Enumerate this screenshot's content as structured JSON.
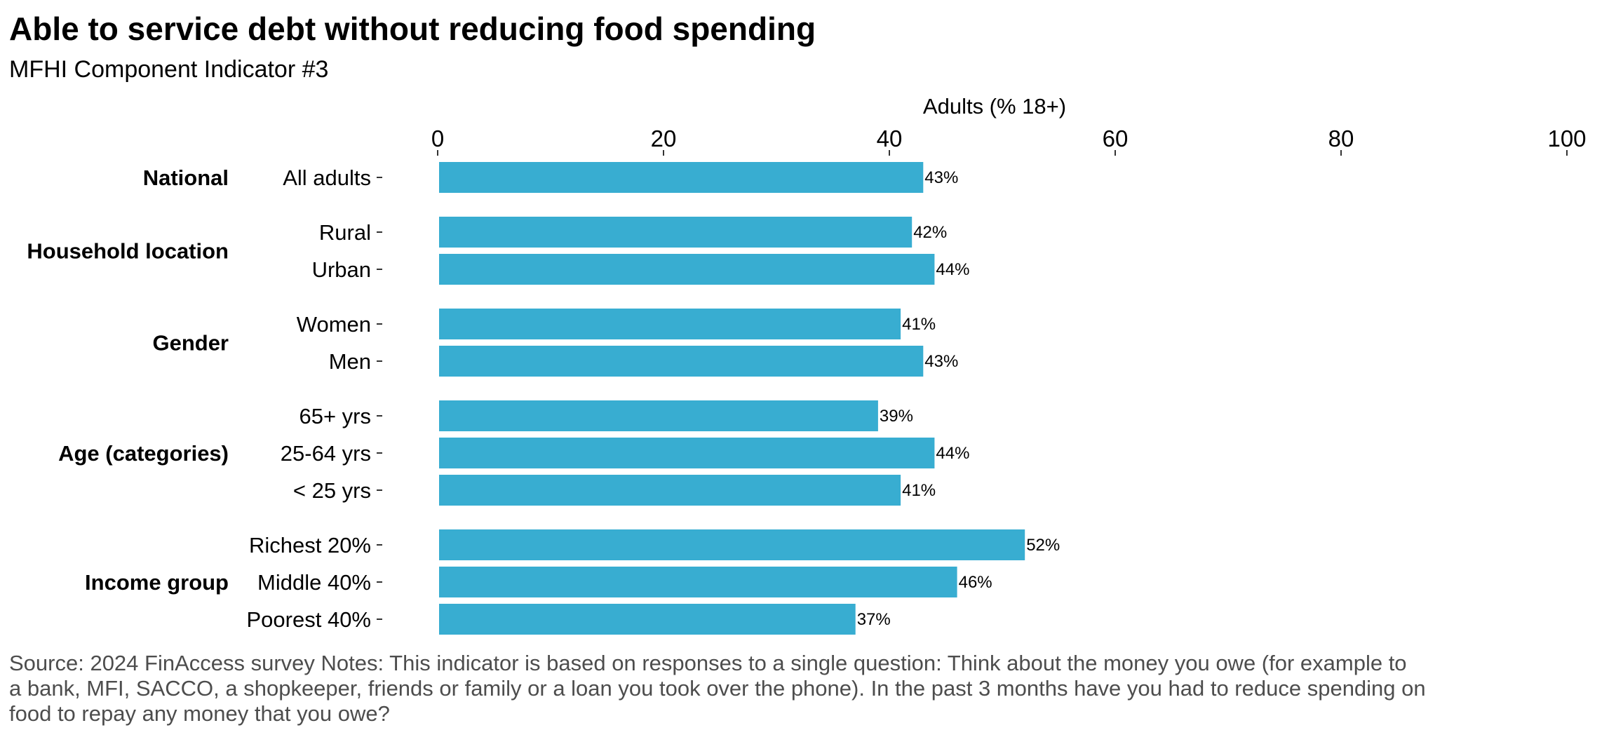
{
  "chart_data": {
    "type": "bar",
    "orientation": "horizontal",
    "title": "Able to service debt without reducing food spending",
    "subtitle": "MFHI Component Indicator #3",
    "xlabel": "Adults (% 18+)",
    "xlim": [
      0,
      100
    ],
    "xticks": [
      "0",
      "20",
      "40",
      "60",
      "80",
      "100"
    ],
    "grid": false,
    "bar_color": "#38ADD1",
    "groups": [
      {
        "name": "National",
        "categories": [
          "All adults"
        ],
        "values": [
          43
        ],
        "labels": [
          "43%"
        ]
      },
      {
        "name": "Household location",
        "categories": [
          "Rural",
          "Urban"
        ],
        "values": [
          42,
          44
        ],
        "labels": [
          "42%",
          "44%"
        ]
      },
      {
        "name": "Gender",
        "categories": [
          "Women",
          "Men"
        ],
        "values": [
          41,
          43
        ],
        "labels": [
          "41%",
          "43%"
        ]
      },
      {
        "name": "Age (categories)",
        "categories": [
          "65+ yrs",
          "25-64 yrs",
          "< 25 yrs"
        ],
        "values": [
          39,
          44,
          41
        ],
        "labels": [
          "39%",
          "44%",
          "41%"
        ]
      },
      {
        "name": "Income group",
        "categories": [
          "Richest 20%",
          "Middle 40%",
          "Poorest 40%"
        ],
        "values": [
          52,
          46,
          37
        ],
        "labels": [
          "52%",
          "46%",
          "37%"
        ]
      }
    ],
    "caption_lines": [
      "Source: 2024 FinAccess survey Notes: This indicator is based on responses to a single question: Think about the money you owe (for example to",
      "a bank, MFI, SACCO, a shopkeeper, friends or family or a loan you took over the phone). In the past 3 months have you had to reduce spending on",
      "food to repay any money that you owe?"
    ]
  }
}
